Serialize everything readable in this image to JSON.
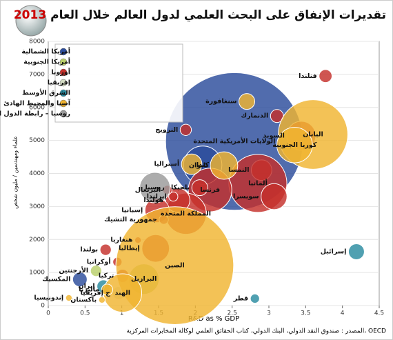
{
  "chart_data": {
    "type": "bubble",
    "title": "تقديرات الإنفاق على البحث العلمي لدول العالم خلال العام",
    "title_year": "2013",
    "x_label": "R&D as % GDP",
    "y_label": "علماء ومهندسين / مليون شخص",
    "source": "المصدر : صندوق النقد الدولي، البنك الدولي، كتاب الحقائق العلمي لوكالة المخابرات المركزية، OECD",
    "xlim": [
      0,
      4.5
    ],
    "xticks": [
      0,
      0.5,
      1,
      1.5,
      2,
      2.5,
      3,
      3.5,
      4,
      4.5
    ],
    "ylim": [
      0,
      8000
    ],
    "yticks": [
      0,
      1000,
      2000,
      3000,
      4000,
      5000,
      6000,
      7000,
      8000
    ],
    "legend": "upper-left",
    "series": [
      {
        "name": "أمريكا الشمالية",
        "color": "#2b4c9b",
        "labels": [
          "الولايات الأمريكية المتحدة",
          "كندا",
          "المكسيك"
        ],
        "x": [
          2.53,
          2.1,
          0.43
        ],
        "values": [
          4970,
          4250,
          790
        ],
        "sizes": [
          450,
          35,
          5
        ]
      },
      {
        "name": "أمريكا الجنوبية",
        "color": "#b9cf6a",
        "labels": [
          "البرازيل",
          "الأرجنتين"
        ],
        "x": [
          1.3,
          0.65
        ],
        "values": [
          800,
          1050
        ],
        "sizes": [
          22,
          3
        ]
      },
      {
        "name": "أوروبا",
        "color": "#c4302b",
        "labels": [
          "فنلندا",
          "الدنمارك",
          "السويد",
          "النرويج",
          "النمسا",
          "ألمانيا",
          "سويسرا",
          "فرنسا",
          "بلجيكا",
          "المملكة المتحدة",
          "هولندا",
          "إيرلندا",
          "البرتغال",
          "إسبانيا",
          "جمهورية التشيك",
          "إيطاليا",
          "هنغاريا",
          "بولندا",
          "أوكرانيا",
          "تركيا"
        ],
        "x": [
          3.77,
          3.11,
          3.44,
          1.87,
          2.9,
          2.85,
          3.07,
          2.2,
          2.06,
          1.87,
          1.76,
          1.7,
          1.62,
          1.48,
          1.57,
          1.46,
          1.22,
          0.78,
          0.94,
          1.01
        ],
        "values": [
          6950,
          5740,
          5140,
          5320,
          4100,
          3700,
          3300,
          3500,
          3570,
          2780,
          3190,
          3300,
          3500,
          2880,
          2600,
          1730,
          1980,
          1690,
          1320,
          900
        ],
        "sizes": [
          4,
          4,
          20,
          3,
          10,
          80,
          16,
          45,
          6,
          40,
          14,
          2,
          2,
          14,
          2,
          18,
          1,
          3,
          2,
          4
        ]
      },
      {
        "name": "إفريقيا",
        "color": "#d4dcc4",
        "labels": [
          "ج إفريقيا"
        ],
        "x": [
          0.96
        ],
        "values": [
          380
        ],
        "sizes": [
          4
        ]
      },
      {
        "name": "الشرق الأوسط",
        "color": "#2a8ba0",
        "labels": [
          "إسرائيل",
          "قطر",
          "إيران"
        ],
        "x": [
          4.19,
          2.81,
          0.75
        ],
        "values": [
          1630,
          210,
          580
        ],
        "sizes": [
          6,
          2,
          4
        ]
      },
      {
        "name": "آسيا والمحيط الهادئ",
        "color": "#f0b431",
        "labels": [
          "اليابان",
          "كوريا الجنوبية",
          "سنغافورة",
          "أستراليا",
          "تايوان",
          "الصين",
          "الهند",
          "ماليزيا",
          "إندونيسيا",
          "باكستان"
        ],
        "x": [
          3.6,
          3.35,
          2.7,
          1.95,
          2.39,
          1.72,
          1.01,
          0.8,
          0.28,
          0.73
        ],
        "values": [
          5180,
          4860,
          6180,
          4280,
          4240,
          1210,
          380,
          480,
          230,
          170
        ],
        "sizes": [
          115,
          30,
          6,
          10,
          18,
          330,
          35,
          3,
          1,
          1
        ]
      },
      {
        "name": "روسيا – رابطة الدول المستقلة",
        "color": "#9a9a9a",
        "labels": [
          "روسيا"
        ],
        "x": [
          1.45
        ],
        "values": [
          3570
        ],
        "sizes": [
          22
        ]
      }
    ]
  }
}
